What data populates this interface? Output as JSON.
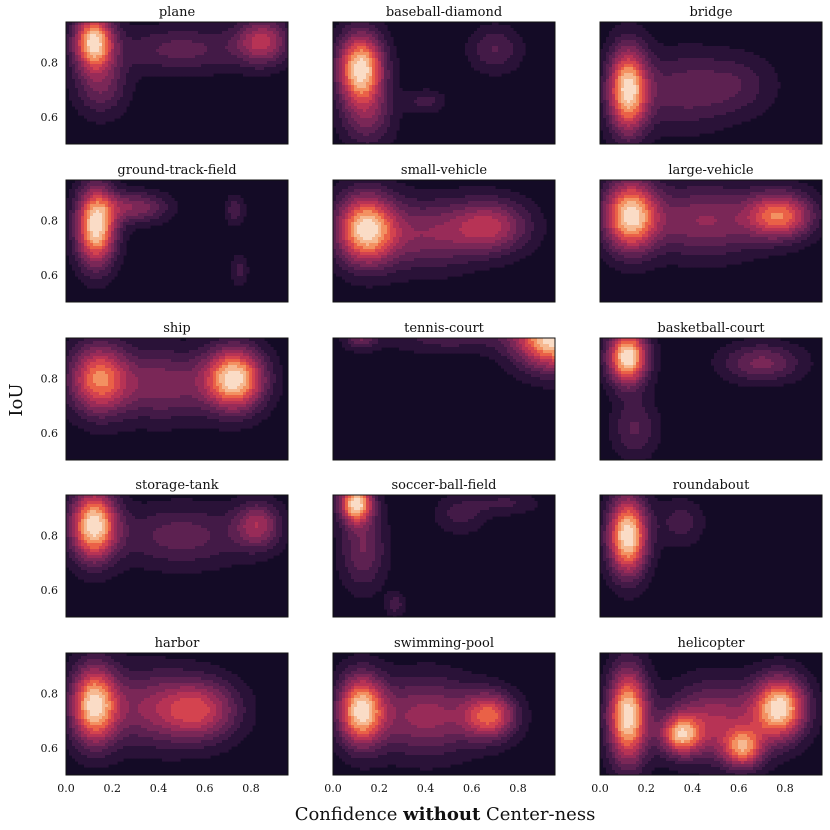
{
  "chart_data": {
    "type": "heatmap",
    "title": "",
    "xlabel": {
      "prefix": "Confidence ",
      "bold": "without",
      "suffix": " Center-ness"
    },
    "ylabel": "IoU",
    "xlim": [
      0,
      0.96
    ],
    "ylim": [
      0.5,
      0.95
    ],
    "xticks": [
      "0.0",
      "0.2",
      "0.4",
      "0.6",
      "0.8"
    ],
    "yticks": [
      "0.6",
      "0.8"
    ],
    "grid": false,
    "colormap": [
      "#140b26",
      "#2a1238",
      "#431a47",
      "#5d2151",
      "#7a2757",
      "#982b58",
      "#b73355",
      "#d4434f",
      "#ea6147",
      "#f39161",
      "#f6b991",
      "#fadcc6"
    ],
    "panels": [
      {
        "name": "plane",
        "peaks": [
          {
            "x": 0.12,
            "y": 0.88,
            "sx": 0.06,
            "sy": 0.07,
            "a": 1.0
          },
          {
            "x": 0.85,
            "y": 0.88,
            "sx": 0.08,
            "sy": 0.06,
            "a": 0.55
          },
          {
            "x": 0.5,
            "y": 0.85,
            "sx": 0.2,
            "sy": 0.06,
            "a": 0.3
          },
          {
            "x": 0.15,
            "y": 0.72,
            "sx": 0.08,
            "sy": 0.08,
            "a": 0.35
          }
        ]
      },
      {
        "name": "baseball-diamond",
        "peaks": [
          {
            "x": 0.12,
            "y": 0.78,
            "sx": 0.07,
            "sy": 0.09,
            "a": 1.0
          },
          {
            "x": 0.7,
            "y": 0.85,
            "sx": 0.08,
            "sy": 0.06,
            "a": 0.25
          },
          {
            "x": 0.4,
            "y": 0.66,
            "sx": 0.06,
            "sy": 0.03,
            "a": 0.2
          },
          {
            "x": 0.15,
            "y": 0.6,
            "sx": 0.08,
            "sy": 0.08,
            "a": 0.3
          }
        ]
      },
      {
        "name": "bridge",
        "peaks": [
          {
            "x": 0.12,
            "y": 0.7,
            "sx": 0.06,
            "sy": 0.11,
            "a": 1.0
          },
          {
            "x": 0.35,
            "y": 0.7,
            "sx": 0.15,
            "sy": 0.1,
            "a": 0.3
          },
          {
            "x": 0.6,
            "y": 0.72,
            "sx": 0.12,
            "sy": 0.08,
            "a": 0.2
          }
        ]
      },
      {
        "name": "ground-track-field",
        "peaks": [
          {
            "x": 0.13,
            "y": 0.78,
            "sx": 0.06,
            "sy": 0.1,
            "a": 1.0
          },
          {
            "x": 0.3,
            "y": 0.85,
            "sx": 0.1,
            "sy": 0.04,
            "a": 0.4
          },
          {
            "x": 0.73,
            "y": 0.84,
            "sx": 0.03,
            "sy": 0.04,
            "a": 0.22
          },
          {
            "x": 0.75,
            "y": 0.62,
            "sx": 0.025,
            "sy": 0.04,
            "a": 0.2
          }
        ]
      },
      {
        "name": "small-vehicle",
        "peaks": [
          {
            "x": 0.14,
            "y": 0.77,
            "sx": 0.09,
            "sy": 0.09,
            "a": 1.0
          },
          {
            "x": 0.68,
            "y": 0.78,
            "sx": 0.12,
            "sy": 0.07,
            "a": 0.55
          },
          {
            "x": 0.4,
            "y": 0.75,
            "sx": 0.15,
            "sy": 0.09,
            "a": 0.4
          }
        ]
      },
      {
        "name": "large-vehicle",
        "peaks": [
          {
            "x": 0.13,
            "y": 0.82,
            "sx": 0.08,
            "sy": 0.09,
            "a": 1.0
          },
          {
            "x": 0.78,
            "y": 0.82,
            "sx": 0.1,
            "sy": 0.06,
            "a": 0.75
          },
          {
            "x": 0.45,
            "y": 0.8,
            "sx": 0.18,
            "sy": 0.09,
            "a": 0.45
          }
        ]
      },
      {
        "name": "ship",
        "peaks": [
          {
            "x": 0.14,
            "y": 0.8,
            "sx": 0.09,
            "sy": 0.09,
            "a": 0.75
          },
          {
            "x": 0.73,
            "y": 0.8,
            "sx": 0.09,
            "sy": 0.08,
            "a": 1.0
          },
          {
            "x": 0.42,
            "y": 0.78,
            "sx": 0.15,
            "sy": 0.09,
            "a": 0.4
          }
        ]
      },
      {
        "name": "tennis-court",
        "peaks": [
          {
            "x": 0.96,
            "y": 0.95,
            "sx": 0.12,
            "sy": 0.08,
            "a": 1.0
          },
          {
            "x": 0.12,
            "y": 0.95,
            "sx": 0.05,
            "sy": 0.03,
            "a": 0.3
          },
          {
            "x": 0.5,
            "y": 0.95,
            "sx": 0.2,
            "sy": 0.04,
            "a": 0.2
          }
        ]
      },
      {
        "name": "basketball-court",
        "peaks": [
          {
            "x": 0.12,
            "y": 0.88,
            "sx": 0.06,
            "sy": 0.07,
            "a": 1.0
          },
          {
            "x": 0.7,
            "y": 0.86,
            "sx": 0.12,
            "sy": 0.05,
            "a": 0.35
          },
          {
            "x": 0.15,
            "y": 0.62,
            "sx": 0.07,
            "sy": 0.08,
            "a": 0.25
          }
        ]
      },
      {
        "name": "storage-tank",
        "peaks": [
          {
            "x": 0.12,
            "y": 0.84,
            "sx": 0.07,
            "sy": 0.09,
            "a": 1.0
          },
          {
            "x": 0.83,
            "y": 0.84,
            "sx": 0.07,
            "sy": 0.06,
            "a": 0.45
          },
          {
            "x": 0.5,
            "y": 0.8,
            "sx": 0.2,
            "sy": 0.08,
            "a": 0.3
          }
        ]
      },
      {
        "name": "soccer-ball-field",
        "peaks": [
          {
            "x": 0.1,
            "y": 0.92,
            "sx": 0.05,
            "sy": 0.05,
            "a": 1.0
          },
          {
            "x": 0.13,
            "y": 0.75,
            "sx": 0.07,
            "sy": 0.1,
            "a": 0.35
          },
          {
            "x": 0.55,
            "y": 0.88,
            "sx": 0.08,
            "sy": 0.05,
            "a": 0.2
          },
          {
            "x": 0.27,
            "y": 0.55,
            "sx": 0.03,
            "sy": 0.03,
            "a": 0.22
          },
          {
            "x": 0.75,
            "y": 0.92,
            "sx": 0.1,
            "sy": 0.03,
            "a": 0.18
          }
        ]
      },
      {
        "name": "roundabout",
        "peaks": [
          {
            "x": 0.12,
            "y": 0.8,
            "sx": 0.06,
            "sy": 0.1,
            "a": 1.0
          },
          {
            "x": 0.35,
            "y": 0.85,
            "sx": 0.07,
            "sy": 0.06,
            "a": 0.2
          }
        ]
      },
      {
        "name": "harbor",
        "peaks": [
          {
            "x": 0.12,
            "y": 0.76,
            "sx": 0.07,
            "sy": 0.1,
            "a": 1.0
          },
          {
            "x": 0.58,
            "y": 0.74,
            "sx": 0.12,
            "sy": 0.08,
            "a": 0.6
          },
          {
            "x": 0.35,
            "y": 0.75,
            "sx": 0.15,
            "sy": 0.1,
            "a": 0.4
          }
        ]
      },
      {
        "name": "swimming-pool",
        "peaks": [
          {
            "x": 0.12,
            "y": 0.74,
            "sx": 0.07,
            "sy": 0.09,
            "a": 1.0
          },
          {
            "x": 0.68,
            "y": 0.72,
            "sx": 0.08,
            "sy": 0.06,
            "a": 0.7
          },
          {
            "x": 0.4,
            "y": 0.72,
            "sx": 0.16,
            "sy": 0.1,
            "a": 0.5
          }
        ]
      },
      {
        "name": "helicopter",
        "peaks": [
          {
            "x": 0.12,
            "y": 0.72,
            "sx": 0.06,
            "sy": 0.12,
            "a": 1.0
          },
          {
            "x": 0.78,
            "y": 0.75,
            "sx": 0.08,
            "sy": 0.08,
            "a": 0.95
          },
          {
            "x": 0.35,
            "y": 0.65,
            "sx": 0.06,
            "sy": 0.05,
            "a": 0.7
          },
          {
            "x": 0.62,
            "y": 0.6,
            "sx": 0.06,
            "sy": 0.05,
            "a": 0.65
          },
          {
            "x": 0.5,
            "y": 0.7,
            "sx": 0.15,
            "sy": 0.1,
            "a": 0.5
          }
        ]
      }
    ]
  }
}
